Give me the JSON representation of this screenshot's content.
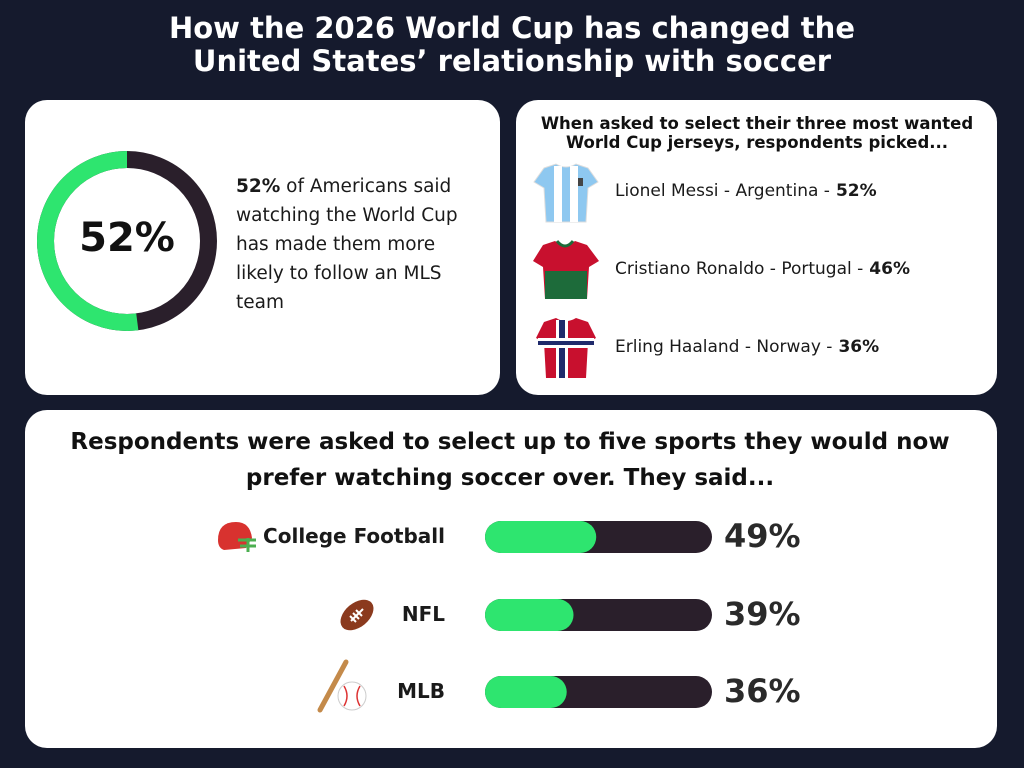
{
  "title": "How the 2026 World Cup has changed the United States’ relationship with soccer",
  "chart_data": [
    {
      "type": "donut",
      "values": [
        52
      ],
      "value_labels": [
        "52%"
      ],
      "color": "#2ee56f",
      "track_color": "#2a1f2b",
      "caption": "of Americans said watching the World Cup has made them more likely to follow an MLS team"
    },
    {
      "type": "bar",
      "orientation": "horizontal",
      "title": "Respondents were asked to select up to five sports they would now prefer watching soccer over. They said...",
      "categories": [
        "College Football",
        "NFL",
        "MLB"
      ],
      "values": [
        49,
        39,
        36
      ],
      "value_labels": [
        "49%",
        "39%",
        "36%"
      ],
      "xlim": [
        0,
        100
      ],
      "color": "#2ee56f",
      "track_color": "#2a1f2b"
    }
  ],
  "jersey_panel": {
    "title": "When asked to select their three most wanted World Cup jerseys, respondents picked...",
    "items": [
      {
        "label": "Lionel Messi - Argentina -",
        "value": "52%"
      },
      {
        "label": "Cristiano Ronaldo - Portugal -",
        "value": "46%"
      },
      {
        "label": "Erling Haaland - Norway -",
        "value": "36%"
      }
    ]
  }
}
